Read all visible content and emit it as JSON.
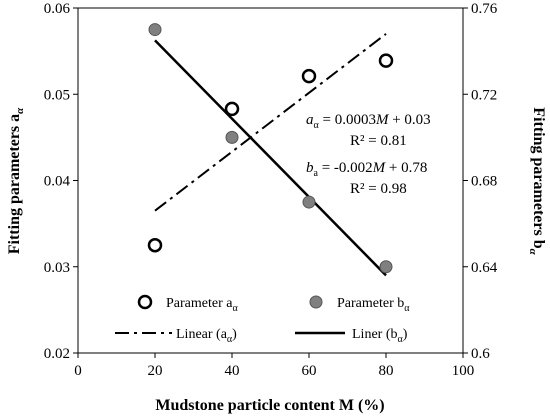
{
  "chart_data": {
    "type": "scatter",
    "xlabel": "Mudstone particle content M (%)",
    "ylabel_left": "Fitting parameters a",
    "ylabel_left_sub": "α",
    "ylabel_right": "Fitting parameters b",
    "ylabel_right_sub": "α",
    "xlim": [
      0,
      100
    ],
    "xticks": [
      0,
      20,
      40,
      60,
      80,
      100
    ],
    "ylim_left": [
      0.02,
      0.06
    ],
    "yticks_left": [
      "0.02",
      "0.03",
      "0.04",
      "0.05",
      "0.06"
    ],
    "ylim_right": [
      0.6,
      0.76
    ],
    "yticks_right": [
      "0.6",
      "0.64",
      "0.68",
      "0.72",
      "0.76"
    ],
    "grid": false,
    "legend_position": "bottom",
    "series": [
      {
        "key": "a",
        "name": "Parameter a",
        "name_sub": "α",
        "axis": "left",
        "marker": "open-circle",
        "x": [
          20,
          40,
          60,
          80
        ],
        "y": [
          0.0325,
          0.0483,
          0.0521,
          0.0539
        ]
      },
      {
        "key": "b",
        "name": "Parameter b",
        "name_sub": "α",
        "axis": "right",
        "marker": "filled-circle",
        "x": [
          20,
          40,
          60,
          80
        ],
        "y": [
          0.75,
          0.7,
          0.67,
          0.64
        ]
      }
    ],
    "fits": [
      {
        "key": "fit_a",
        "name": "Linear (a",
        "name_sub": "α",
        "name_end": ")",
        "axis": "left",
        "style": "dash-dot",
        "x": [
          20,
          80
        ],
        "y": [
          0.0365,
          0.057
        ]
      },
      {
        "key": "fit_b",
        "name": "Liner (b",
        "name_sub": "α",
        "name_end": ")",
        "axis": "right",
        "style": "solid",
        "x": [
          20,
          80
        ],
        "y": [
          0.745,
          0.636
        ]
      }
    ],
    "annotations": [
      {
        "var": "a",
        "sub": "α",
        "rest": " = 0.0003",
        "M": "M",
        "tail": " + 0.03",
        "r2": "R² = 0.81"
      },
      {
        "var": "b",
        "sub": "a",
        "rest": " = -0.002",
        "M": "M",
        "tail": " + 0.78",
        "r2": "R² = 0.98"
      }
    ],
    "colors": {
      "filled_marker": "#808080",
      "marker_edge": "#000000",
      "line": "#000000"
    }
  }
}
